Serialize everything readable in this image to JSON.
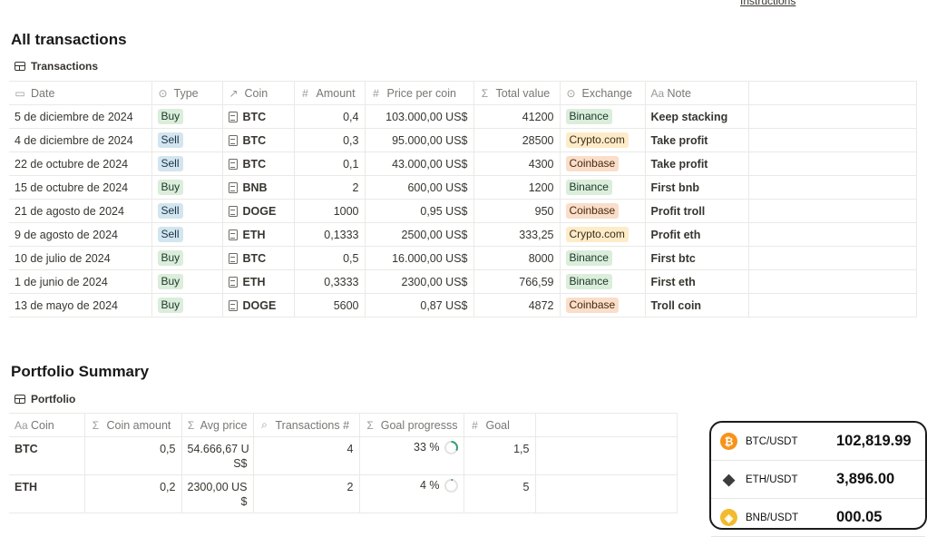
{
  "top_link": "Instructions",
  "transactions_section": {
    "title": "All transactions",
    "view_tab": "Transactions",
    "columns": [
      {
        "label": "Date",
        "icon": "calendar-icon"
      },
      {
        "label": "Type",
        "icon": "select-icon"
      },
      {
        "label": "Coin",
        "icon": "relation-icon"
      },
      {
        "label": "Amount",
        "icon": "hash-icon"
      },
      {
        "label": "Price per coin",
        "icon": "hash-icon"
      },
      {
        "label": "Total value",
        "icon": "sigma-icon"
      },
      {
        "label": "Exchange",
        "icon": "select-icon"
      },
      {
        "label": "Note",
        "icon": "text-icon"
      }
    ],
    "rows": [
      {
        "date": "5 de diciembre de 2024",
        "type": "Buy",
        "coin": "BTC",
        "amount": "0,4",
        "price": "103.000,00 US$",
        "total": "41200",
        "exchange": "Binance",
        "note": "Keep stacking"
      },
      {
        "date": "4 de diciembre de 2024",
        "type": "Sell",
        "coin": "BTC",
        "amount": "0,3",
        "price": "95.000,00 US$",
        "total": "28500",
        "exchange": "Crypto.com",
        "note": "Take profit"
      },
      {
        "date": "22 de octubre de 2024",
        "type": "Sell",
        "coin": "BTC",
        "amount": "0,1",
        "price": "43.000,00 US$",
        "total": "4300",
        "exchange": "Coinbase",
        "note": "Take profit"
      },
      {
        "date": "15 de octubre de 2024",
        "type": "Buy",
        "coin": "BNB",
        "amount": "2",
        "price": "600,00 US$",
        "total": "1200",
        "exchange": "Binance",
        "note": "First bnb"
      },
      {
        "date": "21 de agosto de 2024",
        "type": "Sell",
        "coin": "DOGE",
        "amount": "1000",
        "price": "0,95 US$",
        "total": "950",
        "exchange": "Coinbase",
        "note": "Profit troll"
      },
      {
        "date": "9 de agosto de 2024",
        "type": "Sell",
        "coin": "ETH",
        "amount": "0,1333",
        "price": "2500,00 US$",
        "total": "333,25",
        "exchange": "Crypto.com",
        "note": "Profit eth"
      },
      {
        "date": "10 de julio de 2024",
        "type": "Buy",
        "coin": "BTC",
        "amount": "0,5",
        "price": "16.000,00 US$",
        "total": "8000",
        "exchange": "Binance",
        "note": "First btc"
      },
      {
        "date": "1 de junio de 2024",
        "type": "Buy",
        "coin": "ETH",
        "amount": "0,3333",
        "price": "2300,00 US$",
        "total": "766,59",
        "exchange": "Binance",
        "note": "First eth"
      },
      {
        "date": "13 de mayo de 2024",
        "type": "Buy",
        "coin": "DOGE",
        "amount": "5600",
        "price": "0,87 US$",
        "total": "4872",
        "exchange": "Coinbase",
        "note": "Troll coin"
      }
    ]
  },
  "portfolio_section": {
    "title": "Portfolio Summary",
    "view_tab": "Portfolio",
    "columns": [
      {
        "label": "Coin",
        "icon": "text-icon"
      },
      {
        "label": "Coin amount",
        "icon": "sigma-icon"
      },
      {
        "label": "Avg price",
        "icon": "sigma-icon"
      },
      {
        "label": "Transactions #",
        "icon": "search-icon"
      },
      {
        "label": "Goal progresss",
        "icon": "sigma-icon"
      },
      {
        "label": "Goal",
        "icon": "hash-icon"
      }
    ],
    "rows": [
      {
        "coin": "BTC",
        "amount": "0,5",
        "avg_line1": "54.666,67 U",
        "avg_line2": "S$",
        "tx": "4",
        "progress": "33 %",
        "progress_fraction": 0.33,
        "goal": "1,5"
      },
      {
        "coin": "ETH",
        "amount": "0,2",
        "avg_line1": "2300,00 US",
        "avg_line2": "$",
        "tx": "2",
        "progress": "4 %",
        "progress_fraction": 0.04,
        "goal": "5"
      }
    ]
  },
  "ticker_widget": {
    "rows": [
      {
        "symbol": "BTC/USDT",
        "price": "102,819.99",
        "icon": "bitcoin-icon",
        "color": "#f7931a"
      },
      {
        "symbol": "ETH/USDT",
        "price": "3,896.00",
        "icon": "ethereum-icon",
        "color": "#3c3c3d"
      },
      {
        "symbol": "BNB/USDT",
        "price": "000.05",
        "icon": "bnb-icon",
        "color": "#f3ba2f"
      }
    ]
  },
  "colors": {
    "buy": "#dbeddb",
    "sell": "#d3e5ef",
    "binance": "#dbeddb",
    "crypto_com": "#fdecc8",
    "coinbase": "#fadec9",
    "progress_ring": "#2f9e6e"
  }
}
